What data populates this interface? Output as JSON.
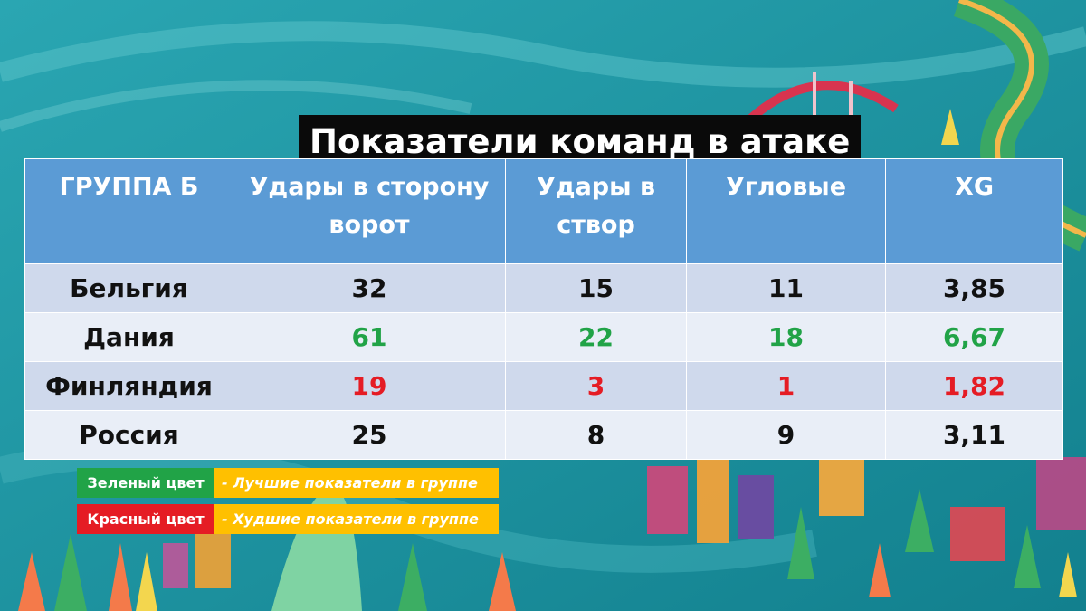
{
  "title": "Показатели команд в атаке",
  "table": {
    "headers": [
      "ГРУППА Б",
      "Удары в сторону ворот",
      "Удары в створ",
      "Угловые",
      "XG"
    ],
    "rows": [
      {
        "team": "Бельгия",
        "values": [
          "32",
          "15",
          "11",
          "3,85"
        ],
        "status": "neutral"
      },
      {
        "team": "Дания",
        "values": [
          "61",
          "22",
          "18",
          "6,67"
        ],
        "status": "best"
      },
      {
        "team": "Финляндия",
        "values": [
          "19",
          "3",
          "1",
          "1,82"
        ],
        "status": "worst"
      },
      {
        "team": "Россия",
        "values": [
          "25",
          "8",
          "9",
          "3,11"
        ],
        "status": "neutral"
      }
    ]
  },
  "legend": [
    {
      "key": "Зеленый цвет",
      "desc": "- Лучшие показатели в группе",
      "color": "#21a347"
    },
    {
      "key": "Красный цвет",
      "desc": "- Худшие показатели в группе",
      "color": "#e51c24"
    }
  ],
  "colors": {
    "header": "#5b9bd5",
    "best": "#21a347",
    "worst": "#e51c24",
    "legend_bg": "#ffc000"
  }
}
